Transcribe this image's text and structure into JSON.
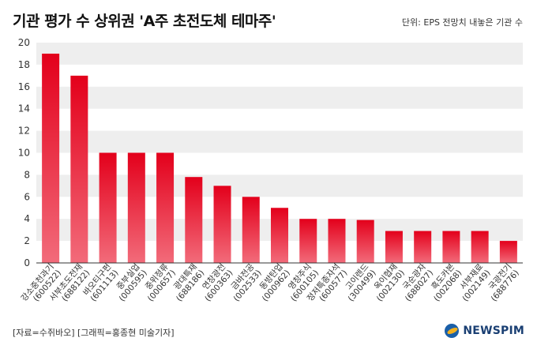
{
  "header": {
    "title": "기관 평가 수 상위권 'A주 초전도체 테마주'",
    "unit_note": "단위: EPS 전망치 내놓은 기관 수"
  },
  "footer": {
    "source": "[자료=수쥐바오] [그래픽=홍종현 미술기자]",
    "logo_text": "NEWSPIM"
  },
  "chart_data": {
    "type": "bar",
    "title": "기관 평가 수 상위권 'A주 초전도체 테마주'",
    "ylabel": "",
    "ylim": [
      0,
      20
    ],
    "yticks": [
      0,
      2,
      4,
      6,
      8,
      10,
      12,
      14,
      16,
      18,
      20
    ],
    "categories": [
      {
        "name": "강소중천과기",
        "code": "(600522)"
      },
      {
        "name": "서부초도전재",
        "code": "(688122)"
      },
      {
        "name": "바오티구펀",
        "code": "(601113)"
      },
      {
        "name": "중부실업",
        "code": "(000595)"
      },
      {
        "name": "중위정류",
        "code": "(000657)"
      },
      {
        "name": "광대특재",
        "code": "(688186)"
      },
      {
        "name": "연창광전",
        "code": "(600363)"
      },
      {
        "name": "금바전공",
        "code": "(002533)"
      },
      {
        "name": "동방탄업",
        "code": "(000962)"
      },
      {
        "name": "영창주식",
        "code": "(600105)"
      },
      {
        "name": "정저특종자석",
        "code": "(600577)"
      },
      {
        "name": "고이렌드",
        "code": "(300499)"
      },
      {
        "name": "옥이협재",
        "code": "(002130)"
      },
      {
        "name": "국순광자",
        "code": "(688027)"
      },
      {
        "name": "흑도카본",
        "code": "(002068)"
      },
      {
        "name": "서부재료",
        "code": "(002149)"
      },
      {
        "name": "국광전기",
        "code": "(688776)"
      }
    ],
    "values": [
      19,
      17,
      10,
      10,
      10,
      7.8,
      7,
      6,
      5,
      4,
      4,
      3.9,
      2.9,
      2.9,
      2.9,
      2.9,
      2
    ],
    "grid": "alternating horizontal bands",
    "colors": {
      "bar_top": "#e3001b",
      "bar_bottom": "#f26b7a",
      "band": "#eeeeee",
      "axis": "#333333"
    }
  }
}
